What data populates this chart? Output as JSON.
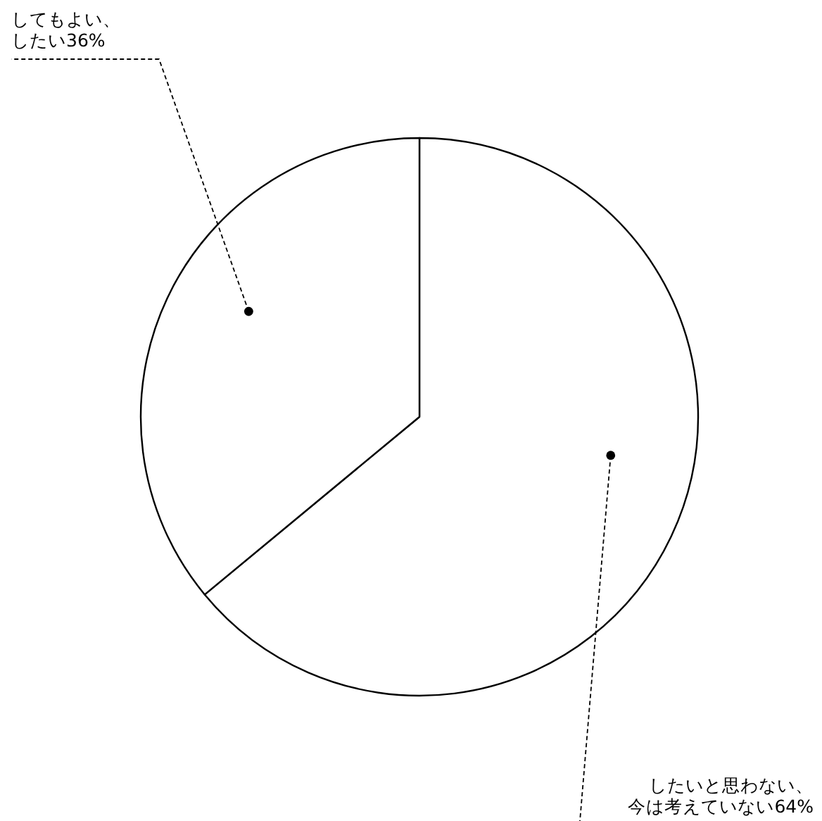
{
  "chart_data": {
    "type": "pie",
    "categories": [
      "したいと思わない、今は考えていない",
      "してもよい、したい"
    ],
    "values": [
      64,
      36
    ],
    "value_labels": [
      "64%",
      "36%"
    ],
    "colors": [
      "#ffffff",
      "#ffffff"
    ],
    "legend": false
  }
}
